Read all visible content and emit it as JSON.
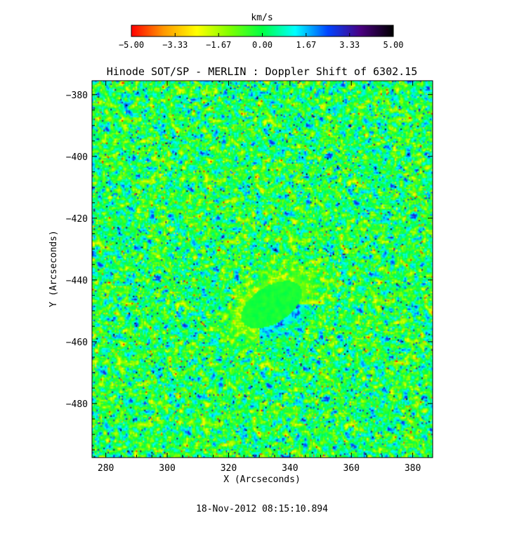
{
  "chart_data": {
    "type": "heatmap",
    "title": "Hinode SOT/SP - MERLIN : Doppler Shift of 6302.15",
    "xlabel": "X (Arcseconds)",
    "ylabel": "Y (Arcseconds)",
    "xlim": [
      275.5,
      386.5
    ],
    "ylim": [
      -497.5,
      -375.5
    ],
    "x_ticks": [
      280,
      300,
      320,
      340,
      360,
      380
    ],
    "y_ticks": [
      -380,
      -400,
      -420,
      -440,
      -460,
      -480
    ],
    "x_tick_labels": [
      "280",
      "300",
      "320",
      "340",
      "360",
      "380"
    ],
    "y_tick_labels": [
      "−380",
      "−400",
      "−420",
      "−440",
      "−460",
      "−480"
    ],
    "colorbar": {
      "label": "km/s",
      "min": -5.0,
      "max": 5.0,
      "ticks": [
        -5.0,
        -3.33,
        -1.67,
        0.0,
        1.67,
        3.33,
        5.0
      ],
      "tick_labels": [
        "−5.00",
        "−3.33",
        "−1.67",
        "0.00",
        "1.67",
        "3.33",
        "5.00"
      ],
      "colors": [
        "#ff0000",
        "#ff9900",
        "#ffff00",
        "#00ff44",
        "#00ffff",
        "#0066ff",
        "#0000cc",
        "#4a0080",
        "#000000"
      ]
    },
    "features": {
      "background_mean_kms": 0.0,
      "sunspot_center": [
        334,
        -448
      ],
      "sunspot_semi_axes_arcsec": [
        11,
        6
      ],
      "sunspot_umbra_mean_kms": -0.2,
      "penumbra_limb_side_kms": -2.0,
      "penumbra_disk_side_kms": 2.5
    },
    "grid": false
  },
  "footer": {
    "timestamp": "18-Nov-2012 08:15:10.894"
  }
}
